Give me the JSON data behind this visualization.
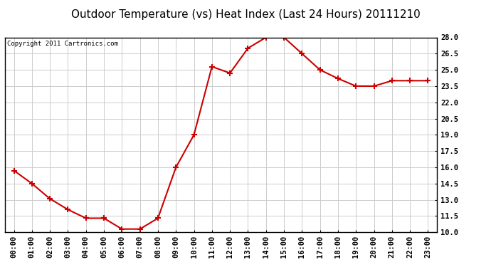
{
  "title": "Outdoor Temperature (vs) Heat Index (Last 24 Hours) 20111210",
  "copyright_text": "Copyright 2011 Cartronics.com",
  "x_labels": [
    "00:00",
    "01:00",
    "02:00",
    "03:00",
    "04:00",
    "05:00",
    "06:00",
    "07:00",
    "08:00",
    "09:00",
    "10:00",
    "11:00",
    "12:00",
    "13:00",
    "14:00",
    "15:00",
    "16:00",
    "17:00",
    "18:00",
    "19:00",
    "20:00",
    "21:00",
    "22:00",
    "23:00"
  ],
  "y_values": [
    15.7,
    14.5,
    13.1,
    12.1,
    11.3,
    11.3,
    10.3,
    10.3,
    11.3,
    16.0,
    19.0,
    25.3,
    24.7,
    27.0,
    28.0,
    28.0,
    26.5,
    25.0,
    24.2,
    23.5,
    23.5,
    24.0,
    24.0,
    24.0
  ],
  "line_color": "#cc0000",
  "marker": "+",
  "marker_size": 6,
  "marker_linewidth": 1.5,
  "line_width": 1.5,
  "ylim_min": 10.0,
  "ylim_max": 28.0,
  "yticks": [
    10.0,
    11.5,
    13.0,
    14.5,
    16.0,
    17.5,
    19.0,
    20.5,
    22.0,
    23.5,
    25.0,
    26.5,
    28.0
  ],
  "bg_color": "#ffffff",
  "plot_bg_color": "#ffffff",
  "grid_color": "#cccccc",
  "title_fontsize": 11,
  "copyright_fontsize": 6.5,
  "tick_fontsize": 7.5,
  "border_color": "#000000"
}
